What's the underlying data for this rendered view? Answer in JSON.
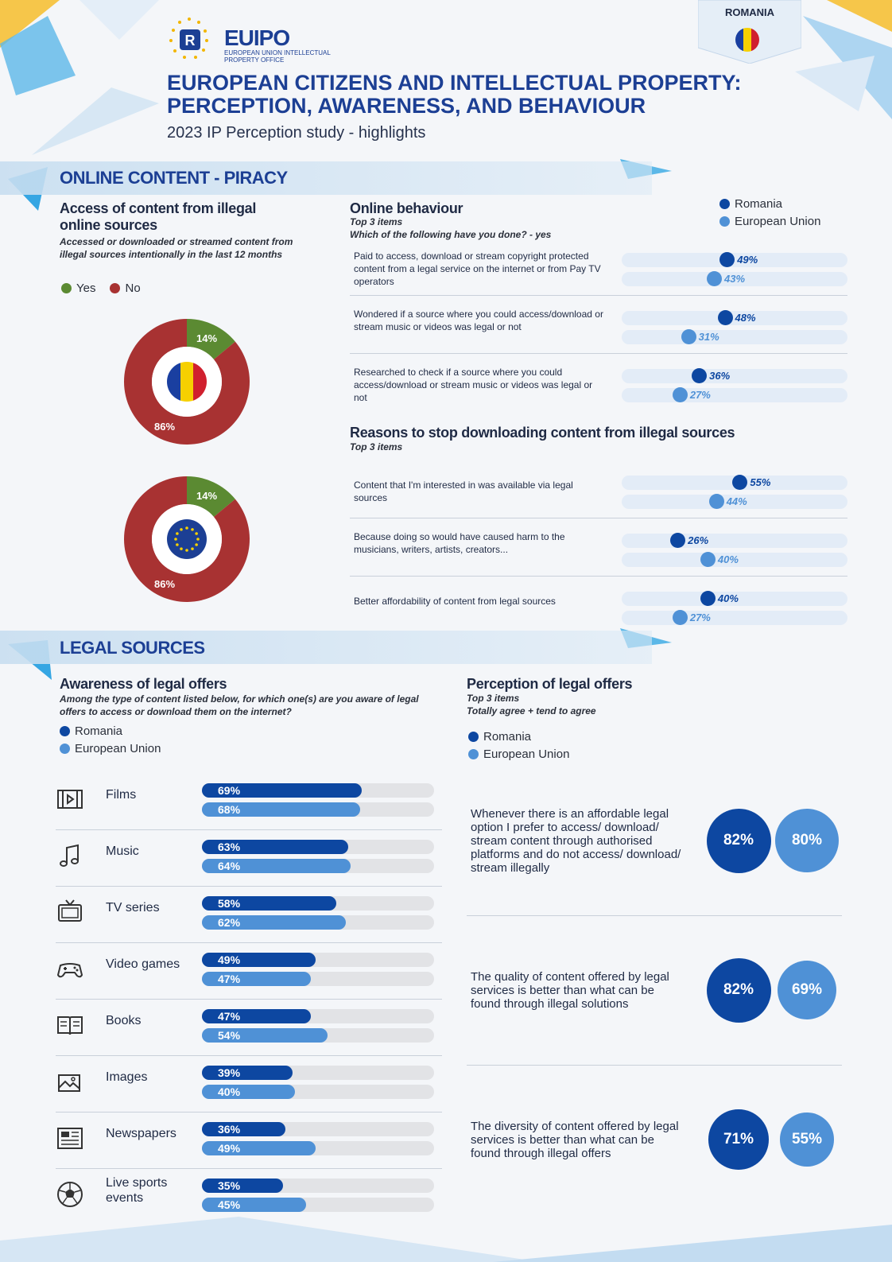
{
  "header": {
    "logo_name": "EUIPO",
    "logo_subtitle": "EUROPEAN UNION INTELLECTUAL PROPERTY OFFICE",
    "title": "EUROPEAN CITIZENS AND INTELLECTUAL PROPERTY: PERCEPTION, AWARENESS, AND BEHAVIOUR",
    "subtitle": "2023 IP Perception study - highlights",
    "country": "ROMANIA"
  },
  "colors": {
    "romania": "#0d47a1",
    "eu": "#4f91d6",
    "yes": "#5b8a32",
    "no": "#a83232",
    "title_blue": "#1c3f94"
  },
  "piracy": {
    "section_title": "ONLINE CONTENT - PIRACY",
    "access": {
      "title": "Access of content from illegal online sources",
      "subtitle": "Accessed or downloaded or streamed content from illegal sources intentionally in the last 12 months",
      "legend_yes": "Yes",
      "legend_no": "No"
    },
    "online_behaviour": {
      "title": "Online behaviour",
      "sub1": "Top 3 items",
      "sub2": "Which of the following have you done? - yes",
      "legend_romania": "Romania",
      "legend_eu": "European Union"
    },
    "reasons": {
      "title": "Reasons to stop downloading content from illegal sources",
      "sub1": "Top 3 items"
    }
  },
  "legal": {
    "section_title": "LEGAL SOURCES",
    "awareness": {
      "title": "Awareness of legal offers",
      "subtitle": "Among the type of content listed below, for which one(s) are you aware of legal offers to access or download them on the internet?",
      "legend_romania": "Romania",
      "legend_eu": "European Union"
    },
    "perception": {
      "title": "Perception of legal offers",
      "sub1": "Top 3 items",
      "sub2": "Totally agree + tend to agree",
      "legend_romania": "Romania",
      "legend_eu": "European Union"
    }
  },
  "chart_data": [
    {
      "type": "pie",
      "subtype": "donut",
      "entity": "Romania",
      "categories": [
        "Yes",
        "No"
      ],
      "values": [
        14,
        86
      ],
      "labels": [
        "14%",
        "86%"
      ]
    },
    {
      "type": "pie",
      "subtype": "donut",
      "entity": "European Union",
      "categories": [
        "Yes",
        "No"
      ],
      "values": [
        14,
        86
      ],
      "labels": [
        "14%",
        "86%"
      ]
    },
    {
      "type": "bar",
      "name": "Online behaviour",
      "categories": [
        "Paid to access, download or stream copyright protected content from a legal service on the internet or from Pay TV operators",
        "Wondered if a source where you could access/download or stream music or videos was legal or not",
        "Researched to check if a source where you could access/download or stream music or videos was legal or not"
      ],
      "series": [
        {
          "name": "Romania",
          "values": [
            49,
            48,
            36
          ],
          "labels": [
            "49%",
            "48%",
            "36%"
          ]
        },
        {
          "name": "European Union",
          "values": [
            43,
            31,
            27
          ],
          "labels": [
            "43%",
            "31%",
            "27%"
          ]
        }
      ],
      "ylim": [
        0,
        100
      ]
    },
    {
      "type": "bar",
      "name": "Reasons to stop downloading content from illegal sources",
      "categories": [
        "Content that I'm interested in was available via legal sources",
        "Because doing so would have caused harm to the musicians, writers, artists, creators...",
        "Better affordability of content from legal sources"
      ],
      "series": [
        {
          "name": "Romania",
          "values": [
            55,
            26,
            40
          ],
          "labels": [
            "55%",
            "26%",
            "40%"
          ]
        },
        {
          "name": "European Union",
          "values": [
            44,
            40,
            27
          ],
          "labels": [
            "44%",
            "40%",
            "27%"
          ]
        }
      ],
      "ylim": [
        0,
        100
      ]
    },
    {
      "type": "bar",
      "name": "Awareness of legal offers",
      "categories": [
        "Films",
        "Music",
        "TV series",
        "Video games",
        "Books",
        "Images",
        "Newspapers",
        "Live sports events"
      ],
      "icons": [
        "film-icon",
        "music-icon",
        "tv-icon",
        "gamepad-icon",
        "book-icon",
        "image-icon",
        "newspaper-icon",
        "ball-icon"
      ],
      "series": [
        {
          "name": "Romania",
          "values": [
            69,
            63,
            58,
            49,
            47,
            39,
            36,
            35
          ],
          "labels": [
            "69%",
            "63%",
            "58%",
            "49%",
            "47%",
            "39%",
            "36%",
            "35%"
          ]
        },
        {
          "name": "European Union",
          "values": [
            68,
            64,
            62,
            47,
            54,
            40,
            49,
            45
          ],
          "labels": [
            "68%",
            "64%",
            "62%",
            "47%",
            "54%",
            "40%",
            "49%",
            "45%"
          ]
        }
      ],
      "ylim": [
        0,
        100
      ]
    },
    {
      "type": "table",
      "name": "Perception of legal offers",
      "categories": [
        "Whenever there is an affordable legal option I prefer to access/ download/ stream content through authorised platforms and do not access/ download/ stream illegally",
        "The quality of content offered by legal services is better than what can be found through illegal solutions",
        "The diversity of content offered by legal services is better than what can be found through illegal offers"
      ],
      "series": [
        {
          "name": "Romania",
          "values": [
            82,
            82,
            71
          ],
          "labels": [
            "82%",
            "82%",
            "71%"
          ]
        },
        {
          "name": "European Union",
          "values": [
            80,
            69,
            55
          ],
          "labels": [
            "80%",
            "69%",
            "55%"
          ]
        }
      ]
    }
  ]
}
